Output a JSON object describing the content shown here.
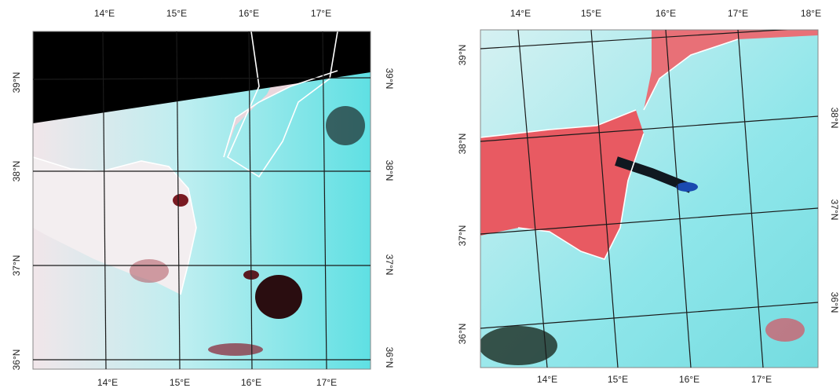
{
  "panels": [
    {
      "top_labels": [
        "14°E",
        "15°E",
        "16°E",
        "17°E"
      ],
      "bottom_labels": [
        "14°E",
        "15°E",
        "16°E",
        "17°E"
      ],
      "left_labels": [
        "39°N",
        "38°N",
        "37°N",
        "36°N"
      ],
      "right_labels": [
        "39°N",
        "38°N",
        "37°N",
        "36°N"
      ]
    },
    {
      "top_labels": [
        "14°E",
        "15°E",
        "16°E",
        "17°E",
        "18°E"
      ],
      "bottom_labels": [
        "14°E",
        "15°E",
        "16°E",
        "17°E"
      ],
      "left_labels": [
        "39°N",
        "38°N",
        "37°N",
        "36°N"
      ],
      "right_labels": [
        "38°N",
        "37°N",
        "36°N"
      ]
    }
  ]
}
